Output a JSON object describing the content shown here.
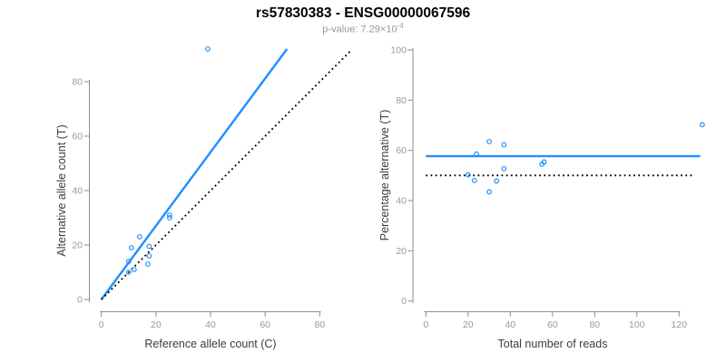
{
  "header": {
    "title": "rs57830383 - ENSG00000067596",
    "p_value_prefix": "p-value: 7.29×10",
    "p_value_exponent": "-4"
  },
  "colors": {
    "accent_blue": "#1e8fff",
    "line_black": "#000000",
    "axis_gray": "#8e8e8e",
    "tick_label_gray": "#9a9a9a",
    "axis_title_gray": "#3d3d3d",
    "subtitle_gray": "#999999"
  },
  "chart_data": [
    {
      "type": "scatter",
      "name": "allele-counts-panel",
      "xlabel": "Reference allele count (C)",
      "ylabel": "Alternative allele count (T)",
      "xlim": [
        0,
        93
      ],
      "ylim": [
        0,
        93
      ],
      "x_ticks": [
        0,
        20,
        40,
        60,
        80
      ],
      "y_ticks": [
        0,
        20,
        40,
        60,
        80
      ],
      "grid": false,
      "points": [
        [
          39,
          92
        ],
        [
          25,
          31
        ],
        [
          25,
          30
        ],
        [
          14,
          23
        ],
        [
          17.5,
          19.5
        ],
        [
          11,
          19
        ],
        [
          17.5,
          16
        ],
        [
          10,
          14
        ],
        [
          17,
          13
        ],
        [
          12,
          11
        ],
        [
          10,
          10
        ]
      ],
      "lines": [
        {
          "name": "regression-line",
          "style": "solid",
          "color_key": "accent_blue",
          "x1": 0,
          "y1": 0,
          "x2": 68,
          "y2": 92
        },
        {
          "name": "identity-line",
          "style": "dotted",
          "color_key": "line_black",
          "x1": 0,
          "y1": 0,
          "x2": 91,
          "y2": 91
        }
      ]
    },
    {
      "type": "scatter",
      "name": "percentage-panel",
      "xlabel": "Total number of reads",
      "ylabel": "Percentage alternative (T)",
      "xlim": [
        0,
        133
      ],
      "ylim": [
        0,
        100
      ],
      "x_ticks": [
        0,
        20,
        40,
        60,
        80,
        100,
        120
      ],
      "y_ticks": [
        0,
        20,
        40,
        60,
        80,
        100
      ],
      "grid": false,
      "points": [
        [
          131,
          70.2
        ],
        [
          56,
          55.4
        ],
        [
          55,
          54.5
        ],
        [
          37,
          62.2
        ],
        [
          37,
          52.7
        ],
        [
          30,
          63.5
        ],
        [
          33.5,
          47.8
        ],
        [
          24,
          58.5
        ],
        [
          30,
          43.5
        ],
        [
          23,
          48
        ],
        [
          20,
          50.3
        ]
      ],
      "lines": [
        {
          "name": "mean-percentage-line",
          "style": "solid",
          "color_key": "accent_blue",
          "x1": 0,
          "y1": 57.7,
          "x2": 130,
          "y2": 57.7
        },
        {
          "name": "fifty-percent-line",
          "style": "dotted",
          "color_key": "line_black",
          "x1": 0,
          "y1": 50,
          "x2": 127,
          "y2": 50
        }
      ]
    }
  ]
}
